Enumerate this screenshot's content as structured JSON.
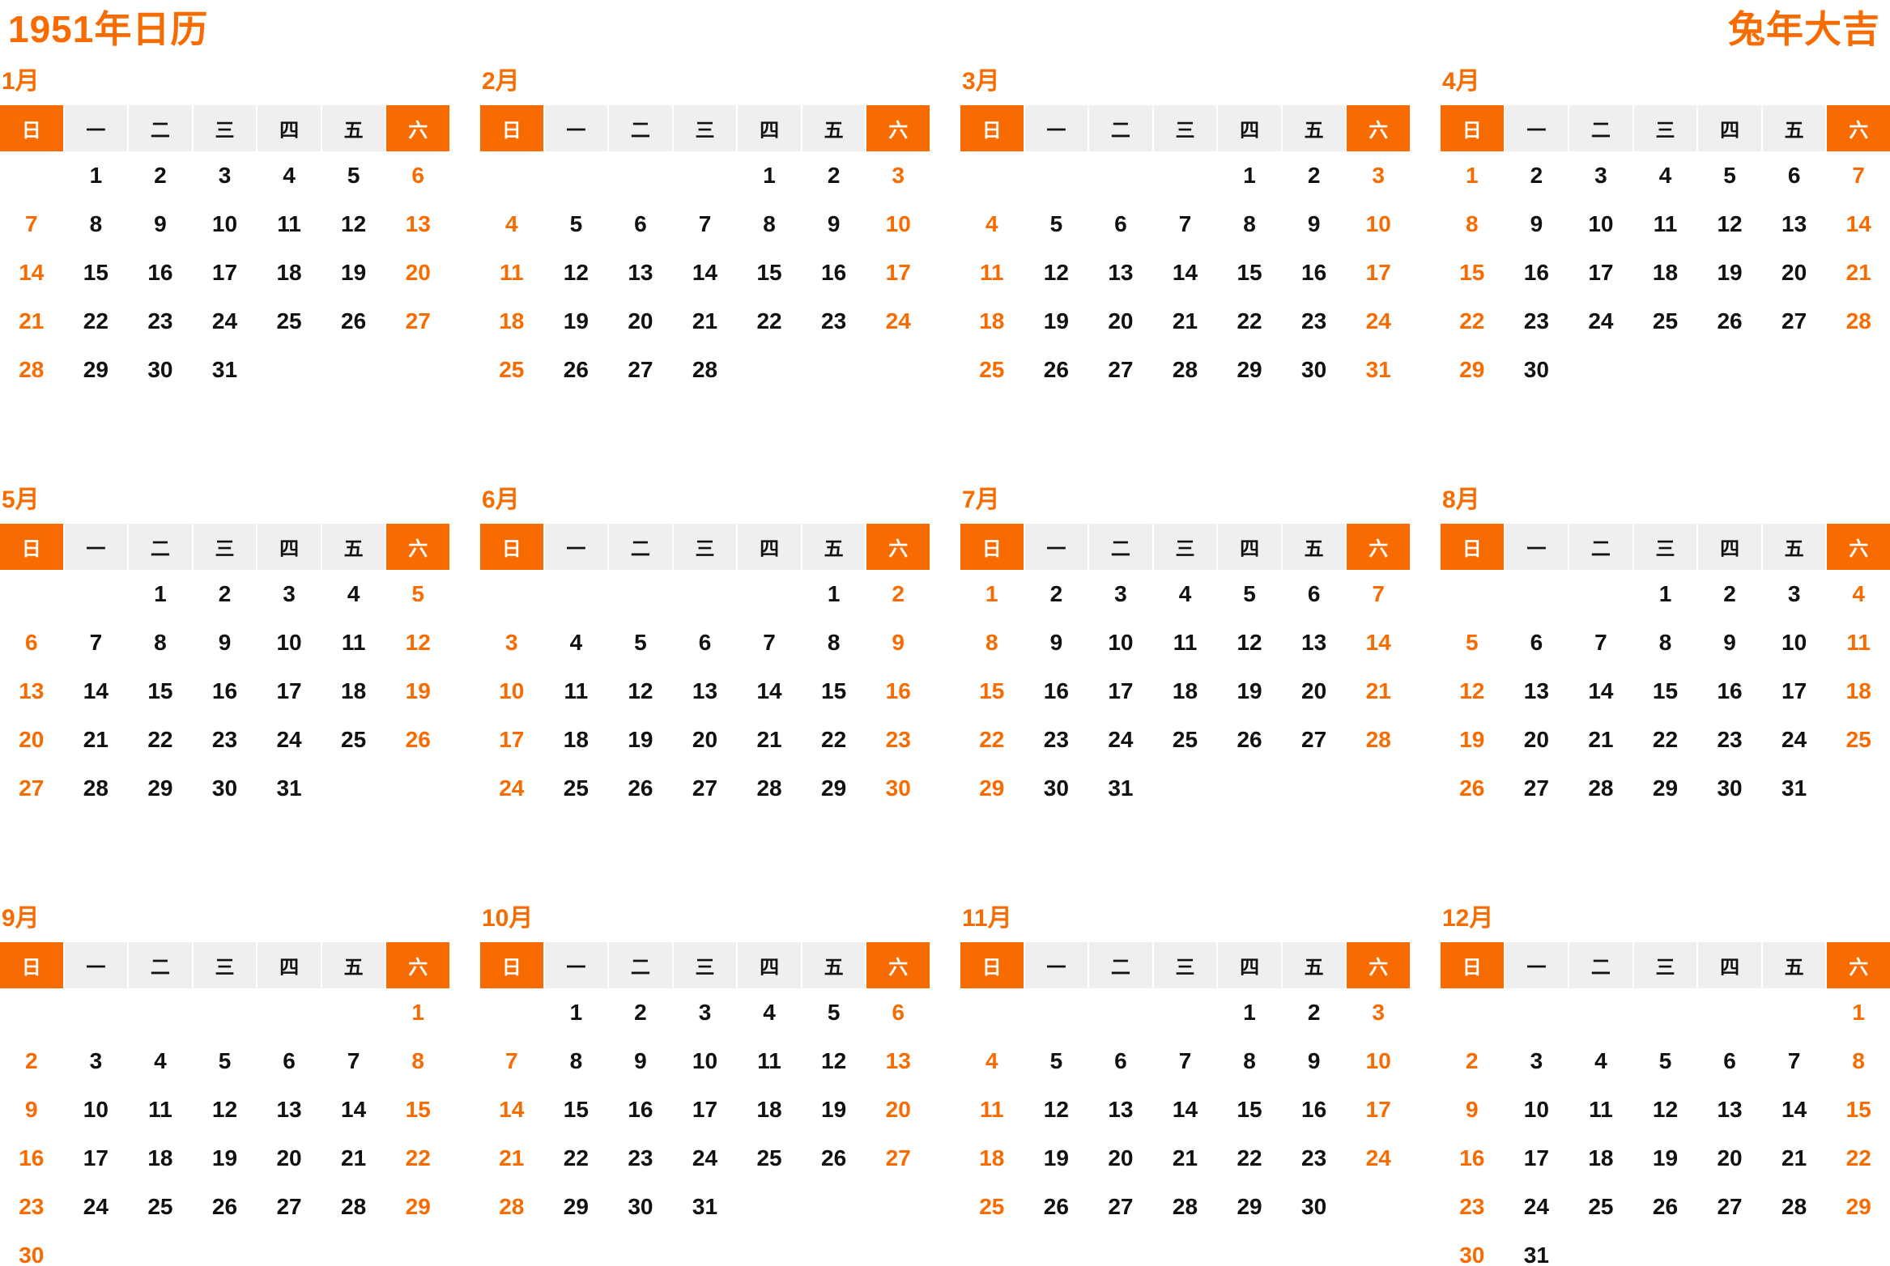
{
  "page": {
    "title": "1951年日历",
    "subtitle": "兔年大吉"
  },
  "colors": {
    "accent": "#f76b00",
    "weekday_cell_bg": "#efefef",
    "weekend_text": "#f76b00",
    "weekday_text": "#111111"
  },
  "weekday_headers": [
    "日",
    "一",
    "二",
    "三",
    "四",
    "五",
    "六"
  ],
  "months": [
    {
      "label": "1月",
      "weeks": [
        [
          "",
          1,
          2,
          3,
          4,
          5,
          6
        ],
        [
          7,
          8,
          9,
          10,
          11,
          12,
          13
        ],
        [
          14,
          15,
          16,
          17,
          18,
          19,
          20
        ],
        [
          21,
          22,
          23,
          24,
          25,
          26,
          27
        ],
        [
          28,
          29,
          30,
          31,
          "",
          "",
          ""
        ]
      ]
    },
    {
      "label": "2月",
      "weeks": [
        [
          "",
          "",
          "",
          "",
          1,
          2,
          3
        ],
        [
          4,
          5,
          6,
          7,
          8,
          9,
          10
        ],
        [
          11,
          12,
          13,
          14,
          15,
          16,
          17
        ],
        [
          18,
          19,
          20,
          21,
          22,
          23,
          24
        ],
        [
          25,
          26,
          27,
          28,
          "",
          "",
          ""
        ]
      ]
    },
    {
      "label": "3月",
      "weeks": [
        [
          "",
          "",
          "",
          "",
          1,
          2,
          3
        ],
        [
          4,
          5,
          6,
          7,
          8,
          9,
          10
        ],
        [
          11,
          12,
          13,
          14,
          15,
          16,
          17
        ],
        [
          18,
          19,
          20,
          21,
          22,
          23,
          24
        ],
        [
          25,
          26,
          27,
          28,
          29,
          30,
          31
        ]
      ]
    },
    {
      "label": "4月",
      "weeks": [
        [
          1,
          2,
          3,
          4,
          5,
          6,
          7
        ],
        [
          8,
          9,
          10,
          11,
          12,
          13,
          14
        ],
        [
          15,
          16,
          17,
          18,
          19,
          20,
          21
        ],
        [
          22,
          23,
          24,
          25,
          26,
          27,
          28
        ],
        [
          29,
          30,
          "",
          "",
          "",
          "",
          ""
        ]
      ]
    },
    {
      "label": "5月",
      "weeks": [
        [
          "",
          "",
          1,
          2,
          3,
          4,
          5
        ],
        [
          6,
          7,
          8,
          9,
          10,
          11,
          12
        ],
        [
          13,
          14,
          15,
          16,
          17,
          18,
          19
        ],
        [
          20,
          21,
          22,
          23,
          24,
          25,
          26
        ],
        [
          27,
          28,
          29,
          30,
          31,
          "",
          ""
        ]
      ]
    },
    {
      "label": "6月",
      "weeks": [
        [
          "",
          "",
          "",
          "",
          "",
          1,
          2
        ],
        [
          3,
          4,
          5,
          6,
          7,
          8,
          9
        ],
        [
          10,
          11,
          12,
          13,
          14,
          15,
          16
        ],
        [
          17,
          18,
          19,
          20,
          21,
          22,
          23
        ],
        [
          24,
          25,
          26,
          27,
          28,
          29,
          30
        ]
      ]
    },
    {
      "label": "7月",
      "weeks": [
        [
          1,
          2,
          3,
          4,
          5,
          6,
          7
        ],
        [
          8,
          9,
          10,
          11,
          12,
          13,
          14
        ],
        [
          15,
          16,
          17,
          18,
          19,
          20,
          21
        ],
        [
          22,
          23,
          24,
          25,
          26,
          27,
          28
        ],
        [
          29,
          30,
          31,
          "",
          "",
          "",
          ""
        ]
      ]
    },
    {
      "label": "8月",
      "weeks": [
        [
          "",
          "",
          "",
          1,
          2,
          3,
          4
        ],
        [
          5,
          6,
          7,
          8,
          9,
          10,
          11
        ],
        [
          12,
          13,
          14,
          15,
          16,
          17,
          18
        ],
        [
          19,
          20,
          21,
          22,
          23,
          24,
          25
        ],
        [
          26,
          27,
          28,
          29,
          30,
          31,
          ""
        ]
      ]
    },
    {
      "label": "9月",
      "weeks": [
        [
          "",
          "",
          "",
          "",
          "",
          "",
          1
        ],
        [
          2,
          3,
          4,
          5,
          6,
          7,
          8
        ],
        [
          9,
          10,
          11,
          12,
          13,
          14,
          15
        ],
        [
          16,
          17,
          18,
          19,
          20,
          21,
          22
        ],
        [
          23,
          24,
          25,
          26,
          27,
          28,
          29
        ],
        [
          30,
          "",
          "",
          "",
          "",
          "",
          ""
        ]
      ]
    },
    {
      "label": "10月",
      "weeks": [
        [
          "",
          1,
          2,
          3,
          4,
          5,
          6
        ],
        [
          7,
          8,
          9,
          10,
          11,
          12,
          13
        ],
        [
          14,
          15,
          16,
          17,
          18,
          19,
          20
        ],
        [
          21,
          22,
          23,
          24,
          25,
          26,
          27
        ],
        [
          28,
          29,
          30,
          31,
          "",
          "",
          ""
        ]
      ]
    },
    {
      "label": "11月",
      "weeks": [
        [
          "",
          "",
          "",
          "",
          1,
          2,
          3
        ],
        [
          4,
          5,
          6,
          7,
          8,
          9,
          10
        ],
        [
          11,
          12,
          13,
          14,
          15,
          16,
          17
        ],
        [
          18,
          19,
          20,
          21,
          22,
          23,
          24
        ],
        [
          25,
          26,
          27,
          28,
          29,
          30,
          ""
        ]
      ]
    },
    {
      "label": "12月",
      "weeks": [
        [
          "",
          "",
          "",
          "",
          "",
          "",
          1
        ],
        [
          2,
          3,
          4,
          5,
          6,
          7,
          8
        ],
        [
          9,
          10,
          11,
          12,
          13,
          14,
          15
        ],
        [
          16,
          17,
          18,
          19,
          20,
          21,
          22
        ],
        [
          23,
          24,
          25,
          26,
          27,
          28,
          29
        ],
        [
          30,
          31,
          "",
          "",
          "",
          "",
          ""
        ]
      ]
    }
  ]
}
